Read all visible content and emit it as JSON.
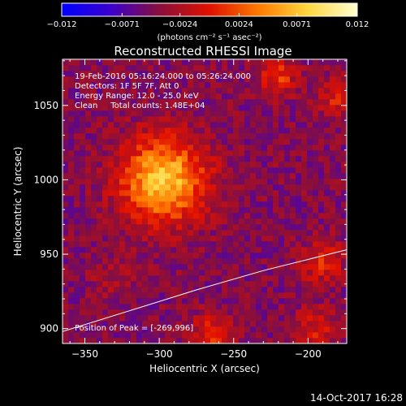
{
  "chart_data": {
    "type": "heatmap",
    "title": "Reconstructed RHESSI Image",
    "colorbar": {
      "ticks": [
        "−0.012",
        "−0.0071",
        "−0.0024",
        "0.0024",
        "0.0071",
        "0.012"
      ],
      "tick_values": [
        -0.012,
        -0.0071,
        -0.0024,
        0.0024,
        0.0071,
        0.012
      ],
      "range": [
        -0.012,
        0.012
      ],
      "units_label": "(photons cm⁻² s⁻¹ asec⁻²)",
      "colors": [
        "#0000ff",
        "#3b00cc",
        "#8a0f3a",
        "#e01000",
        "#ff7a00",
        "#ffd840",
        "#ffffd0"
      ]
    },
    "info_lines": [
      "19-Feb-2016 05:16:24.000 to 05:26:24.000",
      "Detectors: 1F 5F 7F, Att 0",
      "Energy Range: 12.0 - 25.0 keV",
      "Clean     Total counts: 1.48E+04"
    ],
    "peak_label": "Position of Peak = [-269,996]",
    "xlabel": "Heliocentric X (arcsec)",
    "ylabel": "Heliocentric Y (arcsec)",
    "xticks": [
      "−350",
      "−300",
      "−250",
      "−200"
    ],
    "xtick_values": [
      -350,
      -300,
      -250,
      -200
    ],
    "yticks": [
      "900",
      "950",
      "1000",
      "1050"
    ],
    "ytick_values": [
      900,
      950,
      1000,
      1050
    ],
    "xlim": [
      -365,
      -174
    ],
    "ylim": [
      890,
      1081
    ],
    "peak": {
      "x": -269,
      "y": 996
    },
    "sources": [
      {
        "x": -297,
        "y": 1000,
        "sigma": 20,
        "amplitude": 0.012
      },
      {
        "x": -220,
        "y": 1069,
        "sigma": 9,
        "amplitude": 0.0055
      },
      {
        "x": -180,
        "y": 1055,
        "sigma": 9,
        "amplitude": 0.0045
      },
      {
        "x": -190,
        "y": 945,
        "sigma": 10,
        "amplitude": 0.005
      },
      {
        "x": -265,
        "y": 895,
        "sigma": 10,
        "amplitude": 0.005
      },
      {
        "x": -195,
        "y": 900,
        "sigma": 10,
        "amplitude": 0.004
      },
      {
        "x": -330,
        "y": 935,
        "sigma": 12,
        "amplitude": 0.0015
      }
    ],
    "background": -0.0045,
    "limb_curve": [
      [
        -365,
        898
      ],
      [
        -320,
        912
      ],
      [
        -275,
        926
      ],
      [
        -230,
        939
      ],
      [
        -174,
        953
      ]
    ]
  },
  "footer": {
    "date": "14-Oct-2017 16:28"
  }
}
